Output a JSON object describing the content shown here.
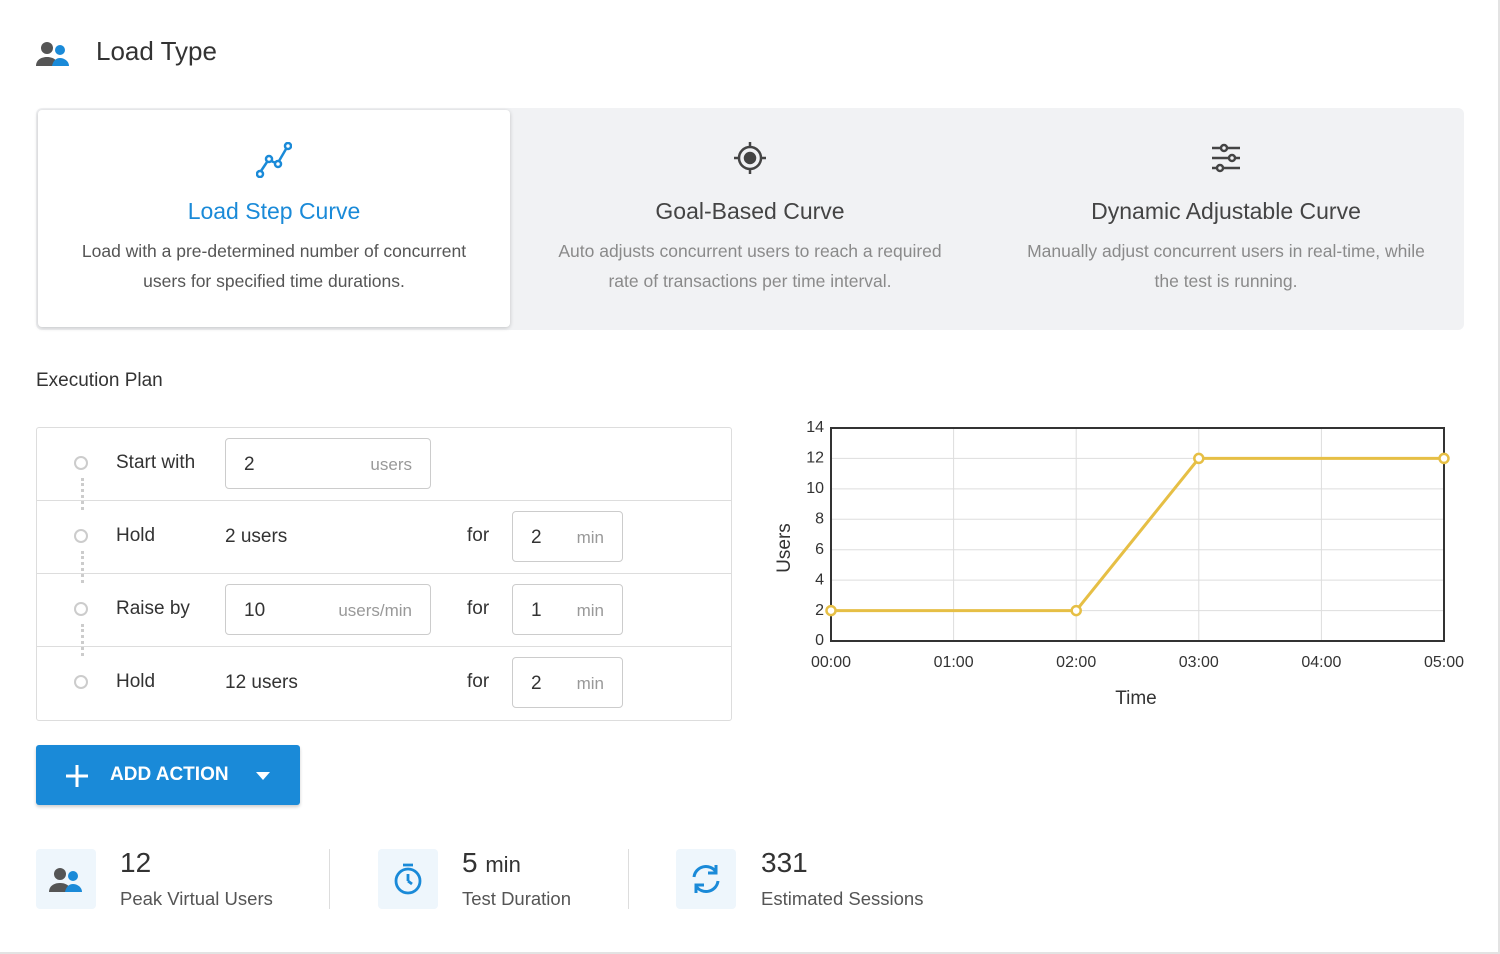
{
  "header": {
    "title": "Load Type"
  },
  "load_types": [
    {
      "title": "Load Step Curve",
      "description": "Load with a pre-determined number of concurrent users for specified time durations."
    },
    {
      "title": "Goal-Based Curve",
      "description": "Auto adjusts concurrent users to reach a required rate of transactions per time interval."
    },
    {
      "title": "Dynamic Adjustable Curve",
      "description": "Manually adjust concurrent users in real-time, while the test is running."
    }
  ],
  "execution_plan": {
    "title": "Execution Plan",
    "rows": [
      {
        "label": "Start with",
        "input": 2,
        "unit": "users"
      },
      {
        "label": "Hold",
        "text": "2 users",
        "for": "for",
        "duration": 2,
        "duration_unit": "min"
      },
      {
        "label": "Raise by",
        "input": 10,
        "unit": "users/min",
        "for": "for",
        "duration": 1,
        "duration_unit": "min"
      },
      {
        "label": "Hold",
        "text": "12 users",
        "for": "for",
        "duration": 2,
        "duration_unit": "min"
      }
    ],
    "add_button": "ADD ACTION"
  },
  "stats": [
    {
      "value": 12,
      "label": "Peak Virtual Users"
    },
    {
      "value": 5,
      "unit": "min",
      "label": "Test Duration"
    },
    {
      "value": 331,
      "label": "Estimated Sessions"
    }
  ],
  "chart_data": {
    "type": "line",
    "x_label": "Time",
    "y_label": "Users",
    "x": [
      0,
      2,
      3,
      5
    ],
    "series": [
      {
        "color": "#e6bf45",
        "values": [
          2,
          2,
          12,
          12
        ]
      }
    ],
    "xlim": [
      0,
      5
    ],
    "xticks": [
      {
        "value": 0,
        "label": "00:00"
      },
      {
        "value": 1,
        "label": "01:00"
      },
      {
        "value": 2,
        "label": "02:00"
      },
      {
        "value": 3,
        "label": "03:00"
      },
      {
        "value": 4,
        "label": "04:00"
      },
      {
        "value": 5,
        "label": "05:00"
      }
    ],
    "ylim": [
      0,
      14
    ],
    "yticks": [
      0,
      2,
      4,
      6,
      8,
      10,
      12,
      14
    ],
    "grid": true
  }
}
